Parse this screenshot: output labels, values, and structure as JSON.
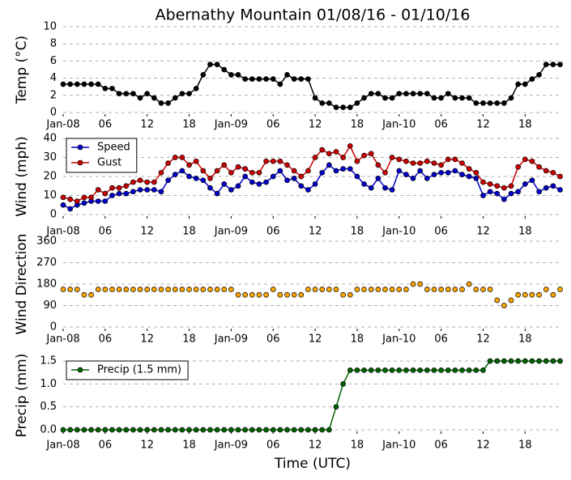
{
  "chart_data": [
    {
      "type": "line",
      "title": "Abernathy Mountain 01/08/16 - 01/10/16",
      "ylabel": "Temp (°C)",
      "x": [
        0,
        1,
        2,
        3,
        4,
        5,
        6,
        7,
        8,
        9,
        10,
        11,
        12,
        13,
        14,
        15,
        16,
        17,
        18,
        19,
        20,
        21,
        22,
        23,
        24,
        25,
        26,
        27,
        28,
        29,
        30,
        31,
        32,
        33,
        34,
        35,
        36,
        37,
        38,
        39,
        40,
        41,
        42,
        43,
        44,
        45,
        46,
        47,
        48,
        49,
        50,
        51,
        52,
        53,
        54,
        55,
        56,
        57,
        58,
        59,
        60,
        61,
        62,
        63,
        64,
        65,
        66,
        67,
        68,
        69,
        70,
        71
      ],
      "xlim": [
        0,
        71.4
      ],
      "xticks": [
        {
          "value": 0,
          "label": "Jan-08"
        },
        {
          "value": 6,
          "label": "06"
        },
        {
          "value": 12,
          "label": "12"
        },
        {
          "value": 18,
          "label": "18"
        },
        {
          "value": 24,
          "label": "Jan-09"
        },
        {
          "value": 30,
          "label": "06"
        },
        {
          "value": 36,
          "label": "12"
        },
        {
          "value": 42,
          "label": "18"
        },
        {
          "value": 48,
          "label": "Jan-10"
        },
        {
          "value": 54,
          "label": "06"
        },
        {
          "value": 60,
          "label": "12"
        },
        {
          "value": 66,
          "label": "18"
        }
      ],
      "ylim": [
        0,
        10
      ],
      "yticks": [
        0,
        2,
        4,
        6,
        8,
        10
      ],
      "grid": "y",
      "series": [
        {
          "color": "#000000",
          "values": [
            3.3,
            3.3,
            3.3,
            3.3,
            3.3,
            3.3,
            2.8,
            2.8,
            2.2,
            2.2,
            2.2,
            1.7,
            2.2,
            1.7,
            1.1,
            1.1,
            1.7,
            2.2,
            2.2,
            2.8,
            4.4,
            5.6,
            5.6,
            5.0,
            4.4,
            4.4,
            3.9,
            3.9,
            3.9,
            3.9,
            3.9,
            3.3,
            4.4,
            3.9,
            3.9,
            3.9,
            1.7,
            1.1,
            1.1,
            0.6,
            0.6,
            0.6,
            1.1,
            1.7,
            2.2,
            2.2,
            1.7,
            1.7,
            2.2,
            2.2,
            2.2,
            2.2,
            2.2,
            1.7,
            1.7,
            2.2,
            1.7,
            1.7,
            1.7,
            1.1,
            1.1,
            1.1,
            1.1,
            1.1,
            1.7,
            3.3,
            3.3,
            3.9,
            4.4,
            5.6,
            5.6,
            5.6
          ]
        }
      ]
    },
    {
      "type": "line",
      "ylabel": "Wind (mph)",
      "legend": "upper left",
      "x": [
        0,
        1,
        2,
        3,
        4,
        5,
        6,
        7,
        8,
        9,
        10,
        11,
        12,
        13,
        14,
        15,
        16,
        17,
        18,
        19,
        20,
        21,
        22,
        23,
        24,
        25,
        26,
        27,
        28,
        29,
        30,
        31,
        32,
        33,
        34,
        35,
        36,
        37,
        38,
        39,
        40,
        41,
        42,
        43,
        44,
        45,
        46,
        47,
        48,
        49,
        50,
        51,
        52,
        53,
        54,
        55,
        56,
        57,
        58,
        59,
        60,
        61,
        62,
        63,
        64,
        65,
        66,
        67,
        68,
        69,
        70,
        71
      ],
      "xlim": [
        0,
        71.4
      ],
      "xticks": [
        {
          "value": 0,
          "label": "Jan-08"
        },
        {
          "value": 6,
          "label": "06"
        },
        {
          "value": 12,
          "label": "12"
        },
        {
          "value": 18,
          "label": "18"
        },
        {
          "value": 24,
          "label": "Jan-09"
        },
        {
          "value": 30,
          "label": "06"
        },
        {
          "value": 36,
          "label": "12"
        },
        {
          "value": 42,
          "label": "18"
        },
        {
          "value": 48,
          "label": "Jan-10"
        },
        {
          "value": 54,
          "label": "06"
        },
        {
          "value": 60,
          "label": "12"
        },
        {
          "value": 66,
          "label": "18"
        }
      ],
      "ylim": [
        0,
        40
      ],
      "yticks": [
        0,
        10,
        20,
        30,
        40
      ],
      "grid": "y",
      "series": [
        {
          "name": "Speed",
          "color": "#0000cc",
          "values": [
            5,
            3,
            5,
            6,
            7,
            7,
            7,
            10,
            11,
            11,
            12,
            13,
            13,
            13,
            12,
            18,
            21,
            23,
            20,
            19,
            18,
            14,
            11,
            16,
            13,
            15,
            20,
            17,
            16,
            17,
            20,
            23,
            18,
            19,
            15,
            13,
            16,
            22,
            26,
            23,
            24,
            24,
            20,
            16,
            14,
            19,
            14,
            13,
            23,
            21,
            19,
            23,
            19,
            21,
            22,
            22,
            23,
            21,
            20,
            19,
            10,
            12,
            11,
            8,
            11,
            12,
            16,
            18,
            12,
            14,
            15,
            13
          ]
        },
        {
          "name": "Gust",
          "color": "#cc0000",
          "values": [
            9,
            8,
            7,
            9,
            9,
            13,
            11,
            14,
            14,
            15,
            17,
            18,
            17,
            17,
            22,
            27,
            30,
            30,
            26,
            28,
            23,
            19,
            23,
            26,
            22,
            25,
            24,
            22,
            22,
            28,
            28,
            28,
            26,
            23,
            20,
            23,
            30,
            34,
            32,
            33,
            30,
            36,
            28,
            31,
            32,
            26,
            22,
            30,
            29,
            28,
            27,
            27,
            28,
            27,
            26,
            29,
            29,
            27,
            24,
            22,
            17,
            16,
            15,
            14,
            15,
            25,
            29,
            28,
            25,
            23,
            22,
            20
          ]
        }
      ]
    },
    {
      "type": "scatter",
      "ylabel": "Wind Direction",
      "x": [
        0,
        1,
        2,
        3,
        4,
        5,
        6,
        7,
        8,
        9,
        10,
        11,
        12,
        13,
        14,
        15,
        16,
        17,
        18,
        19,
        20,
        21,
        22,
        23,
        24,
        25,
        26,
        27,
        28,
        29,
        30,
        31,
        32,
        33,
        34,
        35,
        36,
        37,
        38,
        39,
        40,
        41,
        42,
        43,
        44,
        45,
        46,
        47,
        48,
        49,
        50,
        51,
        52,
        53,
        54,
        55,
        56,
        57,
        58,
        59,
        60,
        61,
        62,
        63,
        64,
        65,
        66,
        67,
        68,
        69,
        70,
        71
      ],
      "xlim": [
        0,
        71.4
      ],
      "xticks": [
        {
          "value": 0,
          "label": "Jan-08"
        },
        {
          "value": 6,
          "label": "06"
        },
        {
          "value": 12,
          "label": "12"
        },
        {
          "value": 18,
          "label": "18"
        },
        {
          "value": 24,
          "label": "Jan-09"
        },
        {
          "value": 30,
          "label": "06"
        },
        {
          "value": 36,
          "label": "12"
        },
        {
          "value": 42,
          "label": "18"
        },
        {
          "value": 48,
          "label": "Jan-10"
        },
        {
          "value": 54,
          "label": "06"
        },
        {
          "value": 60,
          "label": "12"
        },
        {
          "value": 66,
          "label": "18"
        }
      ],
      "ylim": [
        0,
        360
      ],
      "yticks": [
        0,
        90,
        180,
        270,
        360
      ],
      "grid": "y",
      "series": [
        {
          "color": "#ffa500",
          "values": [
            158,
            158,
            158,
            135,
            135,
            158,
            158,
            158,
            158,
            158,
            158,
            158,
            158,
            158,
            158,
            158,
            158,
            158,
            158,
            158,
            158,
            158,
            158,
            158,
            158,
            135,
            135,
            135,
            135,
            135,
            158,
            135,
            135,
            135,
            135,
            158,
            158,
            158,
            158,
            158,
            135,
            135,
            158,
            158,
            158,
            158,
            158,
            158,
            158,
            158,
            180,
            180,
            158,
            158,
            158,
            158,
            158,
            158,
            180,
            158,
            158,
            158,
            112,
            90,
            112,
            135,
            135,
            135,
            135,
            158,
            135,
            158
          ]
        }
      ]
    },
    {
      "type": "line",
      "ylabel": "Precip (mm)",
      "xlabel": "Time (UTC)",
      "legend": "upper left",
      "x": [
        0,
        1,
        2,
        3,
        4,
        5,
        6,
        7,
        8,
        9,
        10,
        11,
        12,
        13,
        14,
        15,
        16,
        17,
        18,
        19,
        20,
        21,
        22,
        23,
        24,
        25,
        26,
        27,
        28,
        29,
        30,
        31,
        32,
        33,
        34,
        35,
        36,
        37,
        38,
        39,
        40,
        41,
        42,
        43,
        44,
        45,
        46,
        47,
        48,
        49,
        50,
        51,
        52,
        53,
        54,
        55,
        56,
        57,
        58,
        59,
        60,
        61,
        62,
        63,
        64,
        65,
        66,
        67,
        68,
        69,
        70,
        71
      ],
      "xlim": [
        0,
        71.4
      ],
      "xticks": [
        {
          "value": 0,
          "label": "Jan-08"
        },
        {
          "value": 6,
          "label": "06"
        },
        {
          "value": 12,
          "label": "12"
        },
        {
          "value": 18,
          "label": "18"
        },
        {
          "value": 24,
          "label": "Jan-09"
        },
        {
          "value": 30,
          "label": "06"
        },
        {
          "value": 36,
          "label": "12"
        },
        {
          "value": 42,
          "label": "18"
        },
        {
          "value": 48,
          "label": "Jan-10"
        },
        {
          "value": 54,
          "label": "06"
        },
        {
          "value": 60,
          "label": "12"
        },
        {
          "value": 66,
          "label": "18"
        }
      ],
      "ylim": [
        0,
        1.5
      ],
      "yticks": [
        {
          "value": 0,
          "label": "0.0"
        },
        {
          "value": 0.5,
          "label": "0.5"
        },
        {
          "value": 1,
          "label": "1.0"
        },
        {
          "value": 1.5,
          "label": "1.5"
        }
      ],
      "grid": "y",
      "series": [
        {
          "name": "Precip (1.5 mm)",
          "color": "#006400",
          "values": [
            0,
            0,
            0,
            0,
            0,
            0,
            0,
            0,
            0,
            0,
            0,
            0,
            0,
            0,
            0,
            0,
            0,
            0,
            0,
            0,
            0,
            0,
            0,
            0,
            0,
            0,
            0,
            0,
            0,
            0,
            0,
            0,
            0,
            0,
            0,
            0,
            0,
            0,
            0,
            0.5,
            1.0,
            1.3,
            1.3,
            1.3,
            1.3,
            1.3,
            1.3,
            1.3,
            1.3,
            1.3,
            1.3,
            1.3,
            1.3,
            1.3,
            1.3,
            1.3,
            1.3,
            1.3,
            1.3,
            1.3,
            1.3,
            1.5,
            1.5,
            1.5,
            1.5,
            1.5,
            1.5,
            1.5,
            1.5,
            1.5,
            1.5,
            1.5
          ]
        }
      ]
    }
  ]
}
